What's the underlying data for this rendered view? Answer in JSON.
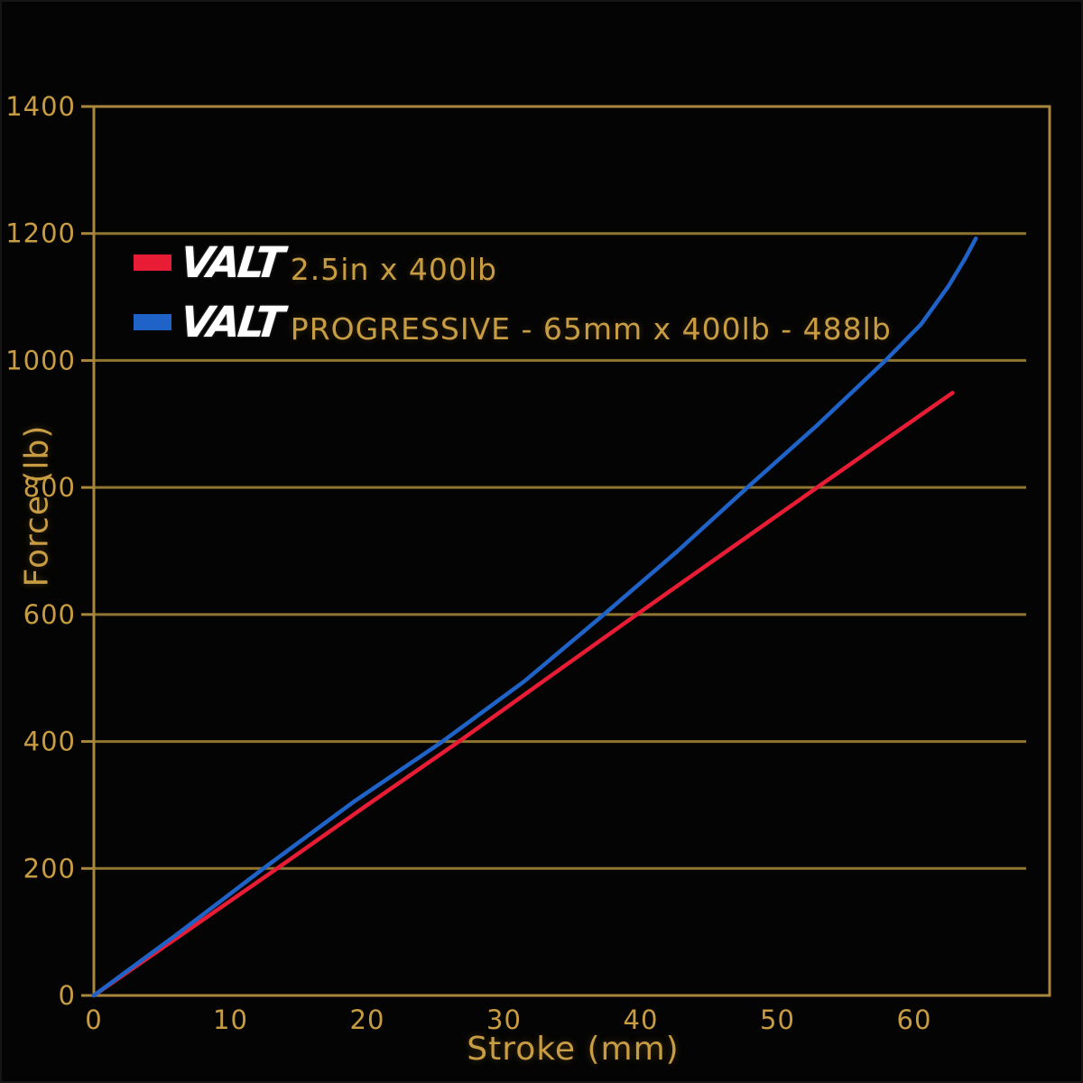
{
  "chart_data": {
    "type": "line",
    "xlabel": "Stroke (mm)",
    "ylabel": "Force (lb)",
    "xlim": [
      0,
      69.9
    ],
    "ylim": [
      0,
      1400
    ],
    "x_ticks": [
      0,
      10,
      20,
      30,
      40,
      50,
      60
    ],
    "y_ticks": [
      0,
      200,
      400,
      600,
      800,
      1000,
      1200,
      1400
    ],
    "grid": "horizontal-only",
    "legend_position": "top-left-inside",
    "series": [
      {
        "name": "VALT 2.5in x 400lb",
        "color": "#e81c34",
        "points": [
          [
            0,
            0
          ],
          [
            6.7,
            100
          ],
          [
            13.4,
            200
          ],
          [
            20,
            300
          ],
          [
            26.7,
            400
          ],
          [
            33.2,
            500
          ],
          [
            39.7,
            600
          ],
          [
            46.3,
            700
          ],
          [
            52.9,
            800
          ],
          [
            58,
            877
          ],
          [
            62.8,
            949
          ]
        ]
      },
      {
        "name": "VALT PROGRESSIVE - 65mm x 400lb - 488lb",
        "color": "#1f63c8",
        "points": [
          [
            0,
            0
          ],
          [
            6,
            95
          ],
          [
            12.4,
            200
          ],
          [
            19,
            305
          ],
          [
            25.5,
            400
          ],
          [
            31.5,
            495
          ],
          [
            37.3,
            600
          ],
          [
            42.7,
            700
          ],
          [
            47.8,
            800
          ],
          [
            53,
            900
          ],
          [
            57.9,
            1000
          ],
          [
            60.5,
            1057
          ],
          [
            62.5,
            1117
          ],
          [
            63.7,
            1160
          ],
          [
            64.5,
            1192
          ]
        ]
      }
    ]
  },
  "axes": {
    "x_title": "Stroke (mm)",
    "y_title": "Force (lb)",
    "x_tick_labels": [
      "0",
      "10",
      "20",
      "30",
      "40",
      "50",
      "60"
    ],
    "y_tick_labels": [
      "0",
      "200",
      "400",
      "600",
      "800",
      "1000",
      "1200",
      "1400"
    ]
  },
  "legend": {
    "items": [
      {
        "brand": "VALT",
        "label": "2.5in x 400lb",
        "swatch_color": "#e81c34"
      },
      {
        "brand": "VALT",
        "label": "PROGRESSIVE - 65mm x 400lb - 488lb",
        "swatch_color": "#1f63c8"
      }
    ]
  },
  "colors": {
    "background": "#040404",
    "grid_gold": "#8f7530",
    "border_gold": "#a8863c",
    "text_gold": "#c79c42",
    "red_series": "#e81c34",
    "blue_series": "#1f63c8",
    "brand_white": "#ffffff"
  }
}
